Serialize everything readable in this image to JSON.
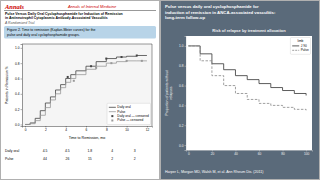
{
  "chart_data": [
    {
      "type": "step",
      "annotations": [
        "Annals",
        "Annals of Internal Medicine",
        "Pulse Versus Daily Oral Cyclophosphamide for Induction of Remission",
        "in Antineutrophil Cytoplasmic Antibody-Associated Vasculitis",
        "A Randomized Trial",
        "Figure 2. Time to remission (Kaplan-Meier curves) for the",
        "pulse and daily oral cyclophosphamide groups."
      ],
      "xlabel": "Time to Remission, mo",
      "ylabel": "Patients in Remission %",
      "xlim": [
        -0.3,
        12.5
      ],
      "ylim": [
        -0.02,
        1.05
      ],
      "xticks": [
        0,
        2,
        4,
        6,
        8,
        10,
        12
      ],
      "yticks": [
        {
          "value": 0.0,
          "label": "0.0"
        },
        {
          "value": 0.2,
          "label": "0.2"
        },
        {
          "value": 0.4,
          "label": "0.4"
        },
        {
          "value": 0.6,
          "label": "0.6"
        },
        {
          "value": 0.8,
          "label": "0.8"
        },
        {
          "value": 1.0,
          "label": "1.0"
        }
      ],
      "grid": false,
      "legend": "lower right",
      "series": [
        {
          "name": "Daily oral",
          "type": "step",
          "color": "#444444",
          "x": [
            0,
            0.5,
            1,
            1.5,
            2,
            2.5,
            3,
            3.5,
            4,
            4.5,
            5,
            6,
            7,
            8,
            9,
            10,
            11,
            12
          ],
          "values": [
            0,
            0.02,
            0.08,
            0.18,
            0.28,
            0.36,
            0.45,
            0.52,
            0.6,
            0.65,
            0.7,
            0.76,
            0.82,
            0.86,
            0.88,
            0.89,
            0.9,
            0.9
          ]
        },
        {
          "name": "Pulse",
          "type": "step",
          "color": "#999999",
          "x": [
            0,
            0.5,
            1,
            1.5,
            2,
            2.5,
            3,
            3.5,
            4,
            4.5,
            5,
            6,
            7,
            8,
            9,
            10,
            11,
            12
          ],
          "values": [
            0,
            0.01,
            0.05,
            0.12,
            0.22,
            0.32,
            0.4,
            0.48,
            0.55,
            0.6,
            0.65,
            0.72,
            0.76,
            0.8,
            0.82,
            0.83,
            0.83,
            0.83
          ]
        },
        {
          "name": "Daily oral — censored",
          "type": "scatter",
          "marker": "square",
          "color": "#444444",
          "x": [
            4.2,
            6.5,
            8.0,
            9.5,
            11.0
          ],
          "values": [
            0.62,
            0.76,
            0.86,
            0.88,
            0.9
          ]
        },
        {
          "name": "Pulse — censored",
          "type": "scatter",
          "marker": "square",
          "color": "#999999",
          "x": [
            4.8,
            7.0,
            8.5,
            10.0,
            11.5
          ],
          "values": [
            0.57,
            0.74,
            0.8,
            0.83,
            0.83
          ]
        }
      ],
      "table": [
        {
          "name": "Daily oral",
          "values": [
            4.5,
            4.5,
            1.8,
            4,
            3
          ]
        },
        {
          "name": "Pulse",
          "values": [
            44,
            26,
            15,
            2,
            2
          ]
        }
      ]
    },
    {
      "type": "step",
      "title": "Risk of relapse by treatment allocation",
      "annotations": [
        "Pulse versus daily oral cyclophosphamide for",
        "induction of remission in ANCA-associated vasculitis:",
        "long-term follow-up",
        "Harper L, Morgan MD, Walsh M, et al. Ann Rheum Dis. (2011)"
      ],
      "ylabel": "Proportion of patients without\nrelapses",
      "xlim": [
        -2,
        105
      ],
      "ylim": [
        -0.05,
        1.1
      ],
      "xticks": [
        0,
        20,
        40,
        60,
        80,
        100
      ],
      "yticks": [
        {
          "value": 0.0,
          "label": "0.0"
        },
        {
          "value": 0.2,
          "label": "0.2"
        },
        {
          "value": 0.4,
          "label": "0.4"
        },
        {
          "value": 0.6,
          "label": "0.6"
        },
        {
          "value": 0.8,
          "label": "0.8"
        },
        {
          "value": 1.0,
          "label": "1.0"
        }
      ],
      "grid": false,
      "legend": "upper right",
      "legend_title": "limb",
      "series": [
        {
          "name": "J 90",
          "color": "#333333",
          "x": [
            0,
            10,
            20,
            30,
            40,
            50,
            60,
            70,
            80,
            90,
            100
          ],
          "values": [
            1.0,
            0.92,
            0.82,
            0.76,
            0.7,
            0.66,
            0.62,
            0.58,
            0.55,
            0.52,
            0.5
          ]
        },
        {
          "name": "Pulse",
          "color": "#888888",
          "line_style": "dashed",
          "x": [
            0,
            10,
            20,
            30,
            40,
            50,
            60,
            70,
            80,
            90,
            100
          ],
          "values": [
            1.0,
            0.85,
            0.7,
            0.6,
            0.52,
            0.46,
            0.42,
            0.4,
            0.38,
            0.36,
            0.35
          ]
        }
      ]
    }
  ]
}
